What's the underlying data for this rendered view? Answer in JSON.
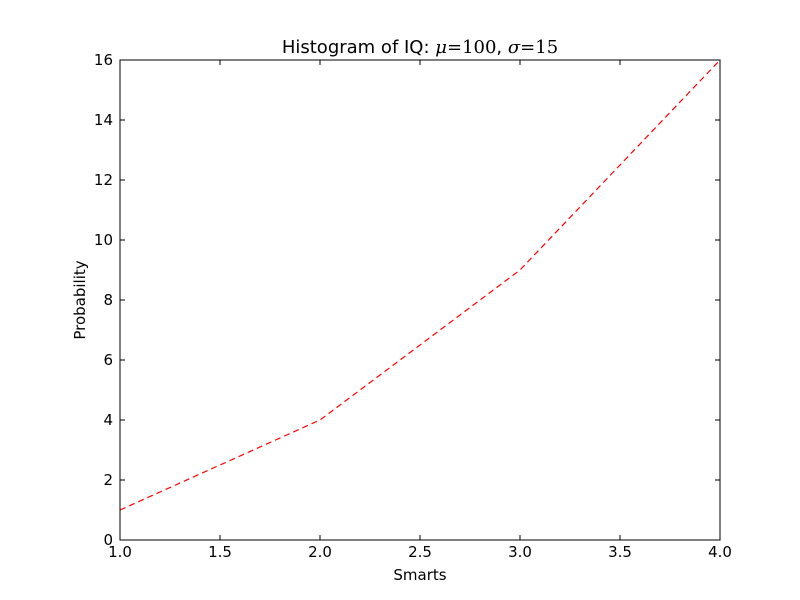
{
  "chart_data": {
    "type": "line",
    "title": {
      "prefix": "Histogram of IQ: ",
      "mu_symbol": "μ",
      "mu_eq": "=",
      "mu_value": "100",
      "separator": ", ",
      "sigma_symbol": "σ",
      "sigma_eq": "=",
      "sigma_value": "15"
    },
    "xlabel": "Smarts",
    "ylabel": "Probability",
    "xlim": [
      1.0,
      4.0
    ],
    "ylim": [
      0,
      16
    ],
    "xticks": [
      "1.0",
      "1.5",
      "2.0",
      "2.5",
      "3.0",
      "3.5",
      "4.0"
    ],
    "yticks": [
      "0",
      "2",
      "4",
      "6",
      "8",
      "10",
      "12",
      "14",
      "16"
    ],
    "grid": false,
    "series": [
      {
        "x": [
          1,
          2,
          3,
          4
        ],
        "y": [
          1,
          4,
          9,
          16
        ],
        "color": "#ff0000",
        "style": "dashed"
      }
    ]
  }
}
